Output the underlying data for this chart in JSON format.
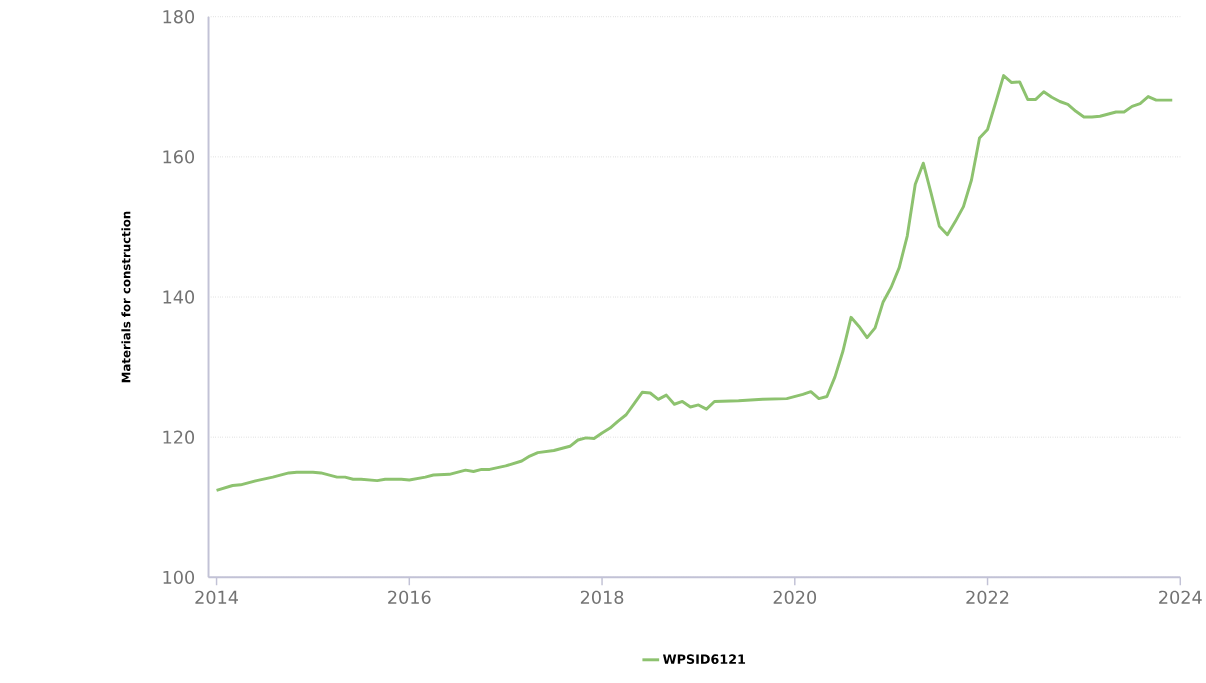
{
  "chart_data": {
    "type": "line",
    "ylabel": "Materials for construction",
    "x": [
      "2014-01",
      "2014-03",
      "2014-04",
      "2014-06",
      "2014-08",
      "2014-10",
      "2014-11",
      "2015-01",
      "2015-02",
      "2015-04",
      "2015-05",
      "2015-06",
      "2015-07",
      "2015-09",
      "2015-10",
      "2015-12",
      "2016-01",
      "2016-03",
      "2016-04",
      "2016-06",
      "2016-08",
      "2016-09",
      "2016-10",
      "2016-11",
      "2017-01",
      "2017-03",
      "2017-04",
      "2017-05",
      "2017-07",
      "2017-08",
      "2017-09",
      "2017-10",
      "2017-11",
      "2017-12",
      "2018-01",
      "2018-02",
      "2018-03",
      "2018-04",
      "2018-05",
      "2018-06",
      "2018-07",
      "2018-08",
      "2018-09",
      "2018-10",
      "2018-11",
      "2018-12",
      "2019-01",
      "2019-02",
      "2019-03",
      "2019-06",
      "2019-09",
      "2019-12",
      "2020-02",
      "2020-03",
      "2020-04",
      "2020-05",
      "2020-06",
      "2020-07",
      "2020-08",
      "2020-09",
      "2020-10",
      "2020-11",
      "2020-12",
      "2021-01",
      "2021-02",
      "2021-03",
      "2021-04",
      "2021-05",
      "2021-06",
      "2021-07",
      "2021-08",
      "2021-09",
      "2021-10",
      "2021-11",
      "2021-12",
      "2022-01",
      "2022-02",
      "2022-03",
      "2022-04",
      "2022-05",
      "2022-06",
      "2022-07",
      "2022-08",
      "2022-09",
      "2022-10",
      "2022-11",
      "2022-12",
      "2023-01",
      "2023-02",
      "2023-03",
      "2023-04",
      "2023-05",
      "2023-06",
      "2023-07",
      "2023-08",
      "2023-09",
      "2023-10",
      "2023-11",
      "2023-12"
    ],
    "series": [
      {
        "name": "WPSID6121",
        "color": "#8dc26f",
        "values": [
          112.4,
          113.1,
          113.2,
          113.8,
          114.3,
          114.9,
          115.0,
          115.0,
          114.9,
          114.3,
          114.3,
          114.0,
          114.0,
          113.8,
          114.0,
          114.0,
          113.9,
          114.3,
          114.6,
          114.7,
          115.3,
          115.1,
          115.4,
          115.4,
          115.9,
          116.6,
          117.3,
          117.8,
          118.1,
          118.4,
          118.7,
          119.6,
          119.9,
          119.8,
          120.6,
          121.3,
          122.3,
          123.2,
          124.8,
          126.4,
          126.3,
          125.4,
          126.0,
          124.7,
          125.1,
          124.3,
          124.6,
          124.0,
          125.1,
          125.2,
          125.4,
          125.5,
          126.1,
          126.5,
          125.5,
          125.8,
          128.6,
          132.3,
          137.1,
          135.8,
          134.2,
          135.6,
          139.3,
          141.4,
          144.2,
          148.7,
          156.1,
          159.1,
          154.7,
          150.1,
          148.9,
          150.8,
          152.9,
          156.7,
          162.7,
          163.9,
          167.7,
          171.6,
          170.6,
          170.7,
          168.2,
          168.2,
          169.3,
          168.5,
          167.9,
          167.5,
          166.5,
          165.7,
          165.7,
          165.8,
          166.1,
          166.4,
          166.4,
          167.2,
          167.6,
          168.6,
          168.1,
          168.1,
          168.1
        ]
      }
    ],
    "xlim": [
      "2013-12",
      "2024-01"
    ],
    "xticks": [
      "2014",
      "2016",
      "2018",
      "2020",
      "2022",
      "2024"
    ],
    "ylim": [
      100,
      180
    ],
    "yticks": [
      100,
      120,
      140,
      160,
      180
    ],
    "grid": "y",
    "legend": "bottom",
    "marker": "none",
    "line_style": "solid"
  }
}
